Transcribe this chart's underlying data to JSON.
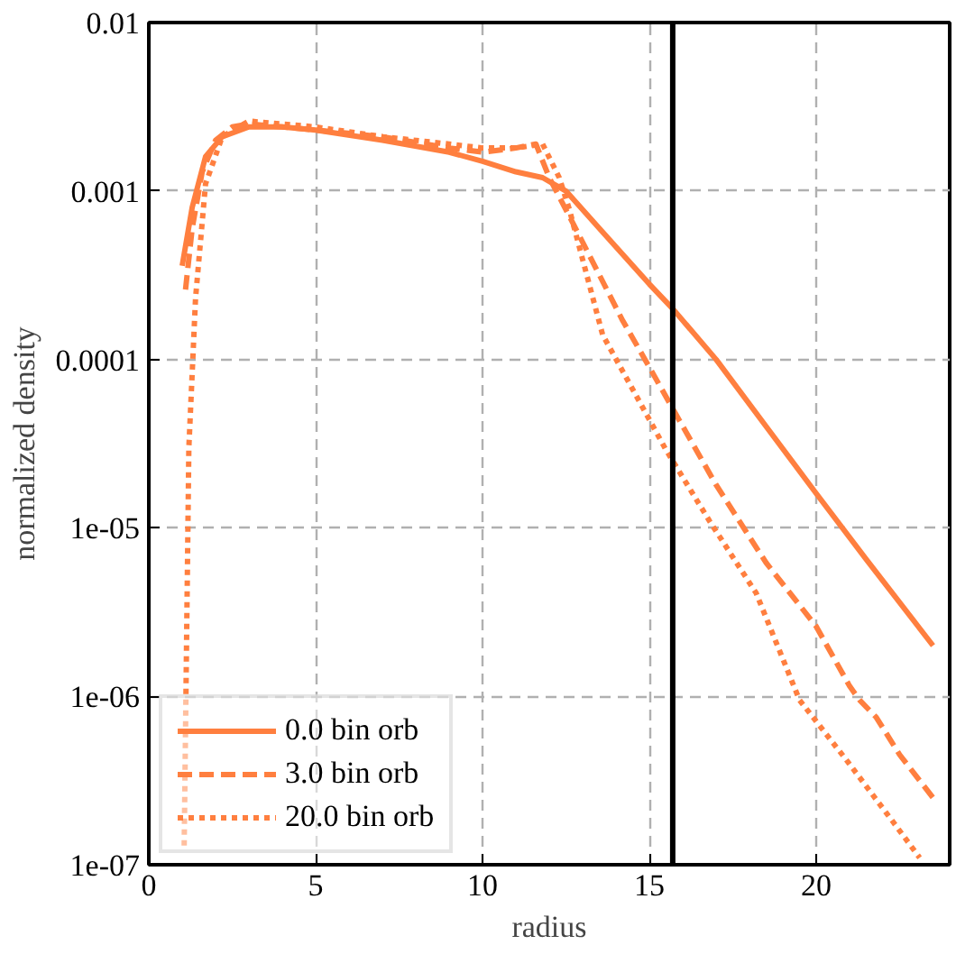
{
  "chart_data": {
    "type": "line",
    "xlabel": "radius",
    "ylabel": "normalized density",
    "log": "y",
    "xlim": [
      0,
      24
    ],
    "xticks": [
      0,
      5,
      10,
      15,
      20
    ],
    "ylim": [
      1e-07,
      0.01
    ],
    "yticks": [
      {
        "value": 1e-07,
        "label": "1e-07"
      },
      {
        "value": 1e-06,
        "label": "1e-06"
      },
      {
        "value": 1e-05,
        "label": "1e-05"
      },
      {
        "value": 0.0001,
        "label": "0.0001"
      },
      {
        "value": 0.001,
        "label": "0.001"
      },
      {
        "value": 0.01,
        "label": "0.01"
      }
    ],
    "grid": true,
    "legend": "bottom left",
    "ref_lines": [
      {
        "axis": "x",
        "value": 15.7,
        "color": "#000000",
        "line_style": "solid"
      }
    ],
    "series": [
      {
        "name": "0.0 bin orb",
        "color": "#ff7f3f",
        "line_style": "solid",
        "x": [
          1.0,
          1.3,
          1.7,
          2.2,
          3.0,
          4.0,
          5.0,
          7.0,
          9.0,
          10.0,
          11.0,
          11.8,
          12.5,
          13.5,
          15.0,
          15.7,
          17.0,
          18.5,
          20.0,
          21.5,
          23.5
        ],
        "values": [
          0.00036,
          0.0008,
          0.0016,
          0.0021,
          0.0024,
          0.0024,
          0.0023,
          0.002,
          0.0017,
          0.0015,
          0.0013,
          0.0012,
          0.001,
          0.0006,
          0.00028,
          0.0002,
          0.0001,
          4e-05,
          1.6e-05,
          6.5e-06,
          2e-06
        ]
      },
      {
        "name": "3.0 bin orb",
        "color": "#ff7f3f",
        "line_style": "dashed",
        "x": [
          1.1,
          1.3,
          1.6,
          2.0,
          2.5,
          3.0,
          4.0,
          5.0,
          7.0,
          9.0,
          10.0,
          11.0,
          11.6,
          12.0,
          12.6,
          14.2,
          15.0,
          15.7,
          17.0,
          18.5,
          20.0,
          21.0,
          21.3,
          21.8,
          22.5,
          23.5
        ],
        "values": [
          0.00026,
          0.0006,
          0.0013,
          0.002,
          0.0024,
          0.0025,
          0.0024,
          0.0023,
          0.0021,
          0.0018,
          0.0017,
          0.0018,
          0.0019,
          0.0012,
          0.00071,
          0.00017,
          9e-05,
          5.1e-05,
          1.8e-05,
          6.2e-06,
          2.6e-06,
          1.15e-06,
          9.5e-07,
          7.5e-07,
          4.5e-07,
          2.5e-07
        ]
      },
      {
        "name": "20.0 bin orb",
        "color": "#ff7f3f",
        "line_style": "dotted",
        "x": [
          1.06,
          1.2,
          1.4,
          1.7,
          2.2,
          3.0,
          4.0,
          5.0,
          7.0,
          9.0,
          10.0,
          11.0,
          11.8,
          12.3,
          12.6,
          13.6,
          15.5,
          16.8,
          18.2,
          19.5,
          20.9,
          22.3,
          23.1
        ],
        "values": [
          1.3e-07,
          3e-05,
          0.00023,
          0.0011,
          0.0021,
          0.0026,
          0.0025,
          0.0024,
          0.0021,
          0.0019,
          0.0018,
          0.0018,
          0.0019,
          0.0012,
          0.00078,
          0.00014,
          2.9e-05,
          1.1e-05,
          4.1e-06,
          9.5e-07,
          4.2e-07,
          1.8e-07,
          1.1e-07
        ]
      }
    ]
  }
}
